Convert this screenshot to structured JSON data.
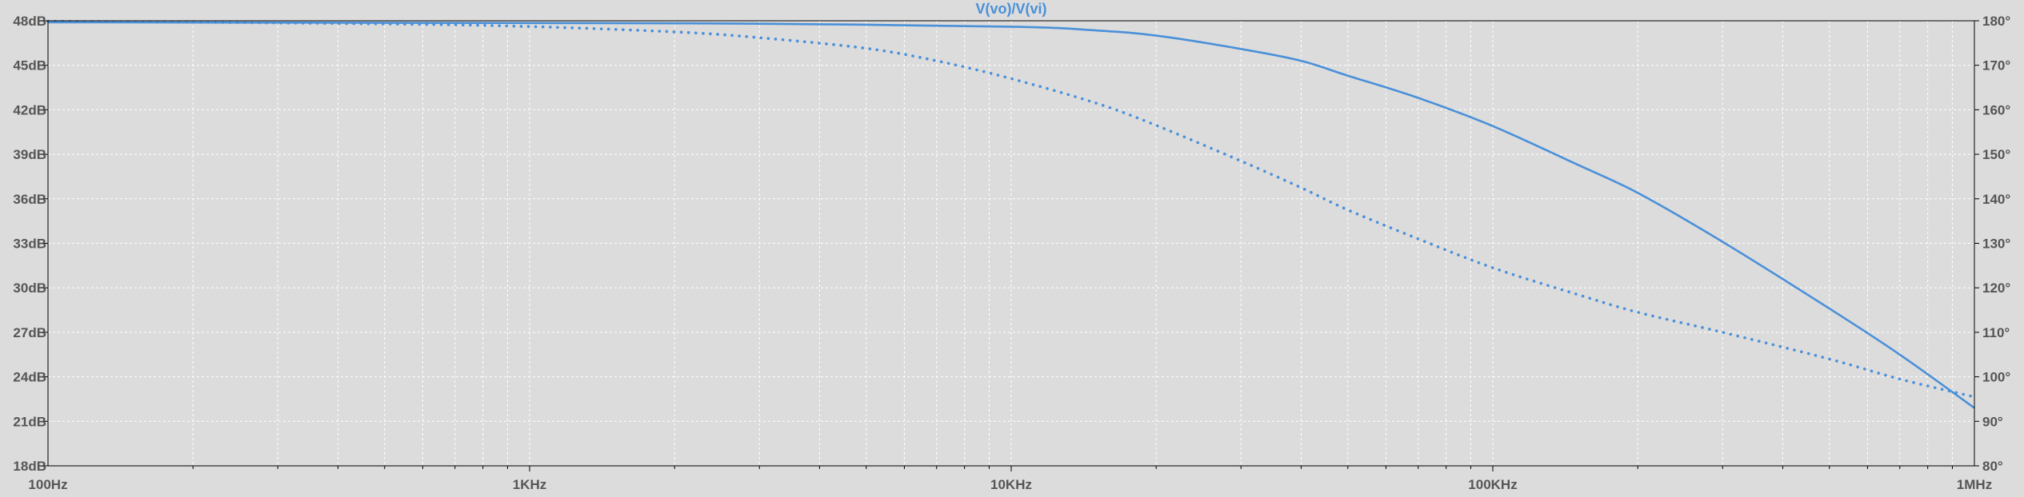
{
  "chart_data": {
    "type": "line",
    "title": "V(vo)/V(vi)",
    "x_scale": "log",
    "xlim": [
      100,
      1000000
    ],
    "ylim_left": [
      18,
      48
    ],
    "ylim_right": [
      80,
      180
    ],
    "grid": true,
    "x_ticks": [
      {
        "value": 100,
        "label": "100Hz"
      },
      {
        "value": 1000,
        "label": "1KHz"
      },
      {
        "value": 10000,
        "label": "10KHz"
      },
      {
        "value": 100000,
        "label": "100KHz"
      },
      {
        "value": 1000000,
        "label": "1MHz"
      }
    ],
    "y_left_ticks": [
      {
        "value": 48,
        "label": "48dB"
      },
      {
        "value": 45,
        "label": "45dB"
      },
      {
        "value": 42,
        "label": "42dB"
      },
      {
        "value": 39,
        "label": "39dB"
      },
      {
        "value": 36,
        "label": "36dB"
      },
      {
        "value": 33,
        "label": "33dB"
      },
      {
        "value": 30,
        "label": "30dB"
      },
      {
        "value": 27,
        "label": "27dB"
      },
      {
        "value": 24,
        "label": "24dB"
      },
      {
        "value": 21,
        "label": "21dB"
      },
      {
        "value": 18,
        "label": "18dB"
      }
    ],
    "y_right_ticks": [
      {
        "value": 180,
        "label": "180°"
      },
      {
        "value": 170,
        "label": "170°"
      },
      {
        "value": 160,
        "label": "160°"
      },
      {
        "value": 150,
        "label": "150°"
      },
      {
        "value": 140,
        "label": "140°"
      },
      {
        "value": 130,
        "label": "130°"
      },
      {
        "value": 120,
        "label": "120°"
      },
      {
        "value": 110,
        "label": "110°"
      },
      {
        "value": 100,
        "label": "100°"
      },
      {
        "value": 90,
        "label": "90°"
      },
      {
        "value": 80,
        "label": "80°"
      }
    ],
    "series": [
      {
        "axis": "left",
        "style": "solid",
        "color": "#4a90d9",
        "x": [
          100,
          1000,
          3000,
          10000,
          15000,
          20000,
          30000,
          40000,
          50000,
          70000,
          100000,
          150000,
          200000,
          300000,
          500000,
          700000,
          1000000
        ],
        "y": [
          47.9,
          47.85,
          47.8,
          47.6,
          47.35,
          47.0,
          46.1,
          45.3,
          44.3,
          42.8,
          40.9,
          38.3,
          36.4,
          33.1,
          28.6,
          25.5,
          21.9
        ]
      },
      {
        "axis": "right",
        "style": "dotted",
        "color": "#4a90d9",
        "x": [
          100,
          500,
          1000,
          2000,
          3000,
          5000,
          7000,
          10000,
          15000,
          20000,
          30000,
          40000,
          50000,
          70000,
          100000,
          150000,
          200000,
          300000,
          500000,
          700000,
          1000000
        ],
        "y": [
          179.9,
          179.3,
          178.7,
          177.5,
          176.2,
          173.8,
          171.0,
          167.0,
          161.5,
          156.5,
          148.5,
          142.5,
          137.5,
          131.0,
          124.5,
          118.5,
          114.5,
          110.0,
          104.0,
          99.5,
          95.5
        ]
      }
    ]
  }
}
